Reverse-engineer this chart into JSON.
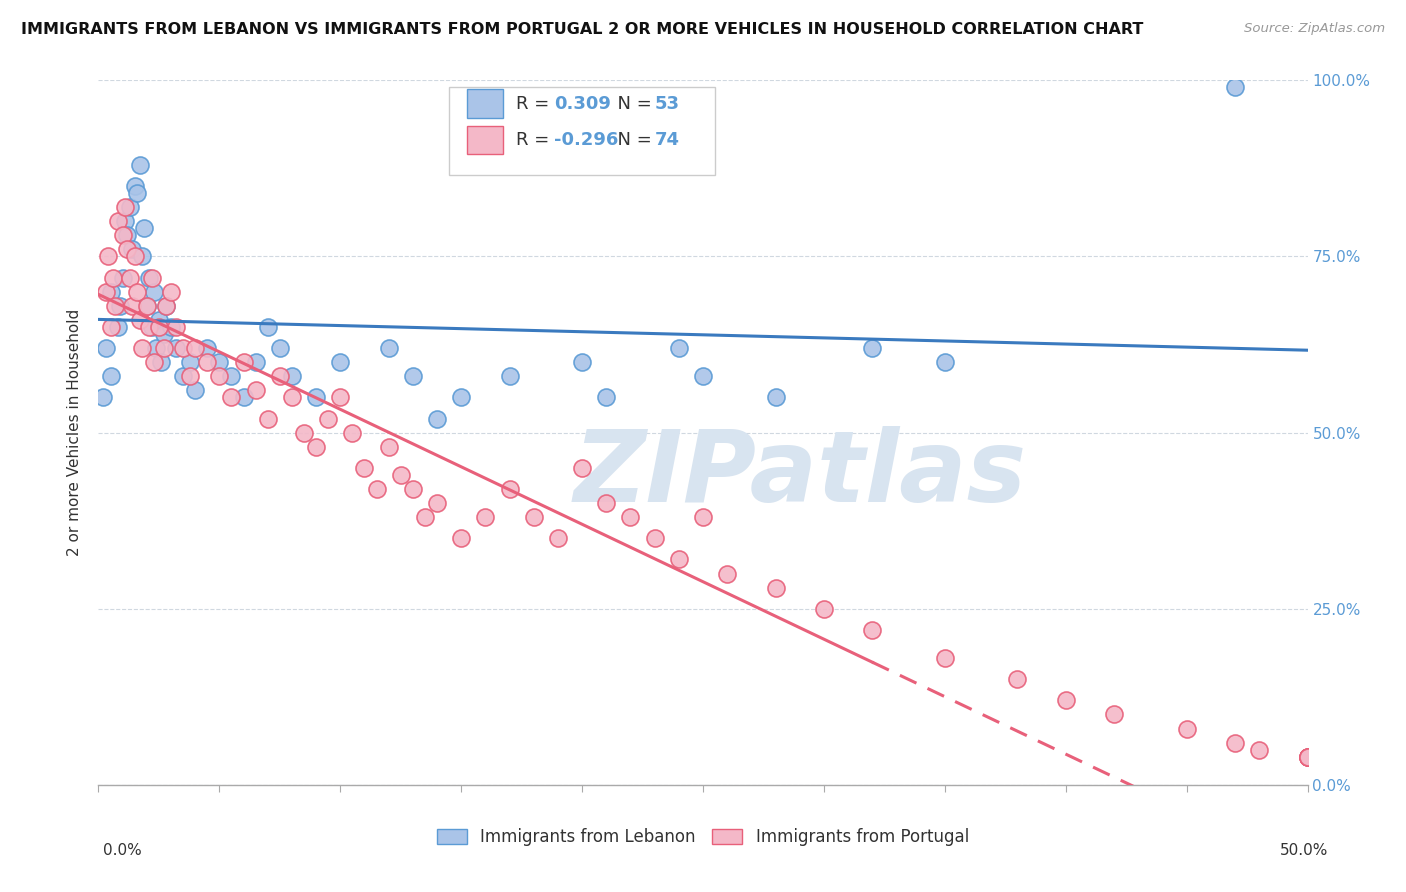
{
  "title": "IMMIGRANTS FROM LEBANON VS IMMIGRANTS FROM PORTUGAL 2 OR MORE VEHICLES IN HOUSEHOLD CORRELATION CHART",
  "source": "Source: ZipAtlas.com",
  "yaxis_label": "2 or more Vehicles in Household",
  "legend_label1": "Immigrants from Lebanon",
  "legend_label2": "Immigrants from Portugal",
  "R1": 0.309,
  "N1": 53,
  "R2": -0.296,
  "N2": 74,
  "blue_scatter_color": "#aac4e8",
  "blue_edge_color": "#5b9bd5",
  "pink_scatter_color": "#f4b8c8",
  "pink_edge_color": "#e8607a",
  "blue_line_color": "#3a7abf",
  "pink_line_color": "#e8607a",
  "watermark_color": "#d8e4f0",
  "watermark_text": "ZIPatlas",
  "right_axis_color": "#5b9bd5",
  "background_color": "#ffffff",
  "grid_color": "#d0d8e0",
  "xlim": [
    0.0,
    50.0
  ],
  "ylim": [
    0.0,
    100.0
  ],
  "leb_x": [
    0.2,
    0.3,
    0.5,
    0.5,
    0.8,
    0.9,
    1.0,
    1.1,
    1.2,
    1.3,
    1.4,
    1.5,
    1.6,
    1.7,
    1.8,
    1.9,
    2.0,
    2.1,
    2.2,
    2.3,
    2.4,
    2.5,
    2.6,
    2.7,
    2.8,
    3.0,
    3.2,
    3.5,
    3.8,
    4.0,
    4.5,
    5.0,
    5.5,
    6.0,
    6.5,
    7.0,
    7.5,
    8.0,
    9.0,
    10.0,
    12.0,
    13.0,
    14.0,
    15.0,
    17.0,
    20.0,
    21.0,
    24.0,
    25.0,
    28.0,
    32.0,
    35.0,
    47.0
  ],
  "leb_y": [
    55.0,
    62.0,
    58.0,
    70.0,
    65.0,
    68.0,
    72.0,
    80.0,
    78.0,
    82.0,
    76.0,
    85.0,
    84.0,
    88.0,
    75.0,
    79.0,
    68.0,
    72.0,
    65.0,
    70.0,
    62.0,
    66.0,
    60.0,
    64.0,
    68.0,
    65.0,
    62.0,
    58.0,
    60.0,
    56.0,
    62.0,
    60.0,
    58.0,
    55.0,
    60.0,
    65.0,
    62.0,
    58.0,
    55.0,
    60.0,
    62.0,
    58.0,
    52.0,
    55.0,
    58.0,
    60.0,
    55.0,
    62.0,
    58.0,
    55.0,
    62.0,
    60.0,
    99.0
  ],
  "port_x": [
    0.3,
    0.4,
    0.5,
    0.6,
    0.7,
    0.8,
    1.0,
    1.1,
    1.2,
    1.3,
    1.4,
    1.5,
    1.6,
    1.7,
    1.8,
    2.0,
    2.1,
    2.2,
    2.3,
    2.5,
    2.7,
    2.8,
    3.0,
    3.2,
    3.5,
    3.8,
    4.0,
    4.5,
    5.0,
    5.5,
    6.0,
    6.5,
    7.0,
    7.5,
    8.0,
    8.5,
    9.0,
    9.5,
    10.0,
    10.5,
    11.0,
    11.5,
    12.0,
    12.5,
    13.0,
    13.5,
    14.0,
    15.0,
    16.0,
    17.0,
    18.0,
    19.0,
    20.0,
    21.0,
    22.0,
    23.0,
    24.0,
    25.0,
    26.0,
    28.0,
    30.0,
    32.0,
    35.0,
    38.0,
    40.0,
    42.0,
    45.0,
    47.0,
    48.0,
    50.0,
    50.0,
    50.0,
    50.0,
    50.0
  ],
  "port_y": [
    70.0,
    75.0,
    65.0,
    72.0,
    68.0,
    80.0,
    78.0,
    82.0,
    76.0,
    72.0,
    68.0,
    75.0,
    70.0,
    66.0,
    62.0,
    68.0,
    65.0,
    72.0,
    60.0,
    65.0,
    62.0,
    68.0,
    70.0,
    65.0,
    62.0,
    58.0,
    62.0,
    60.0,
    58.0,
    55.0,
    60.0,
    56.0,
    52.0,
    58.0,
    55.0,
    50.0,
    48.0,
    52.0,
    55.0,
    50.0,
    45.0,
    42.0,
    48.0,
    44.0,
    42.0,
    38.0,
    40.0,
    35.0,
    38.0,
    42.0,
    38.0,
    35.0,
    45.0,
    40.0,
    38.0,
    35.0,
    32.0,
    38.0,
    30.0,
    28.0,
    25.0,
    22.0,
    18.0,
    15.0,
    12.0,
    10.0,
    8.0,
    6.0,
    5.0,
    4.0,
    4.0,
    4.0,
    4.0,
    4.0
  ]
}
